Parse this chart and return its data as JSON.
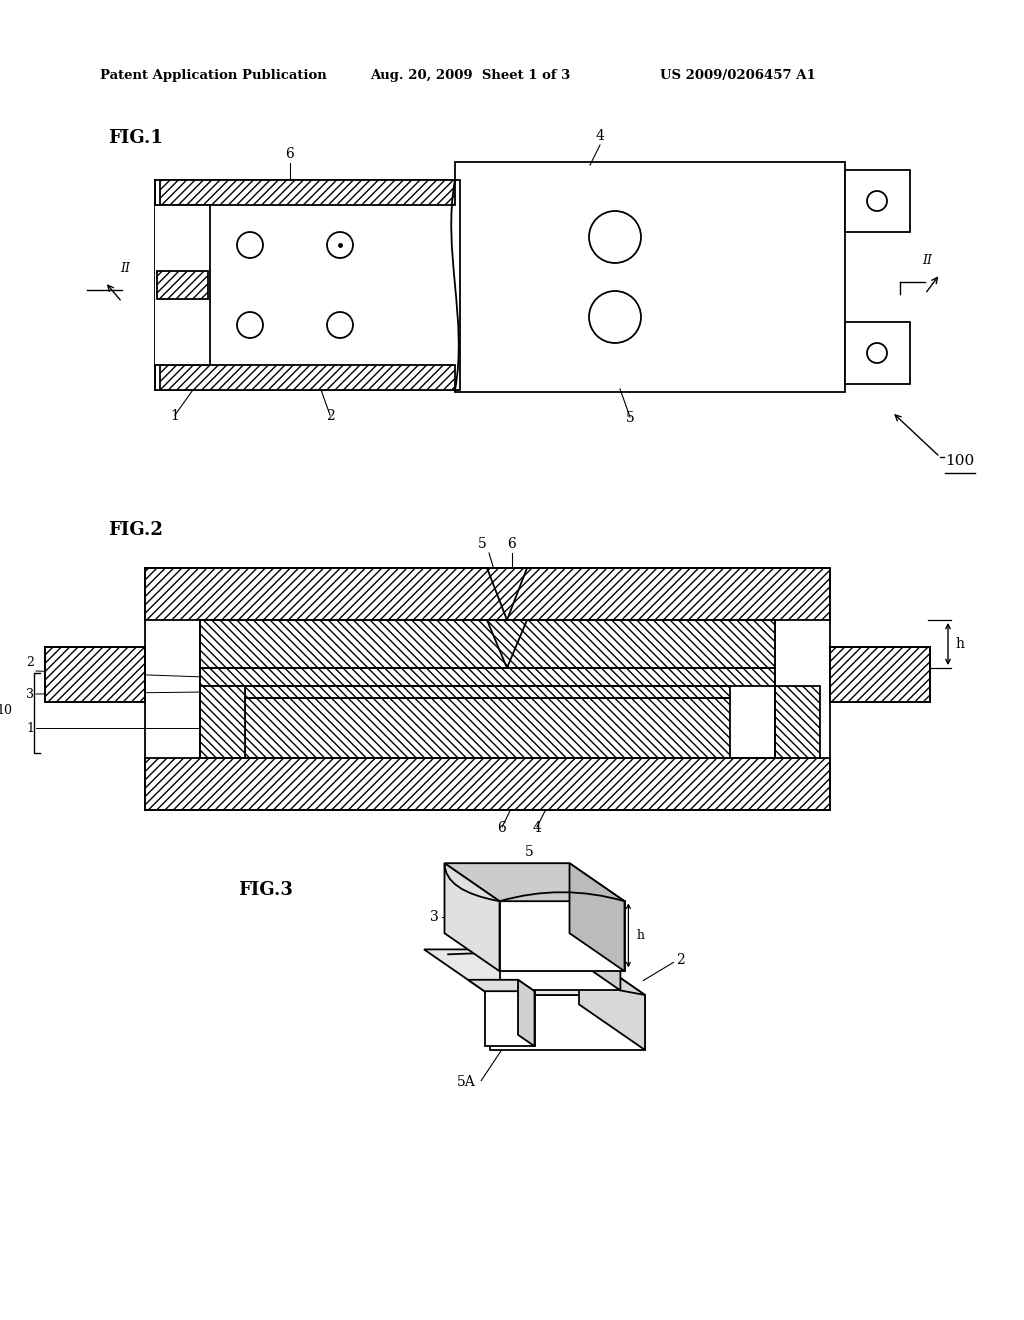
{
  "bg_color": "#ffffff",
  "line_color": "#000000",
  "header_left": "Patent Application Publication",
  "header_mid": "Aug. 20, 2009  Sheet 1 of 3",
  "header_right": "US 2009/0206457 A1",
  "fig1_label": "FIG.1",
  "fig2_label": "FIG.2",
  "fig3_label": "FIG.3"
}
